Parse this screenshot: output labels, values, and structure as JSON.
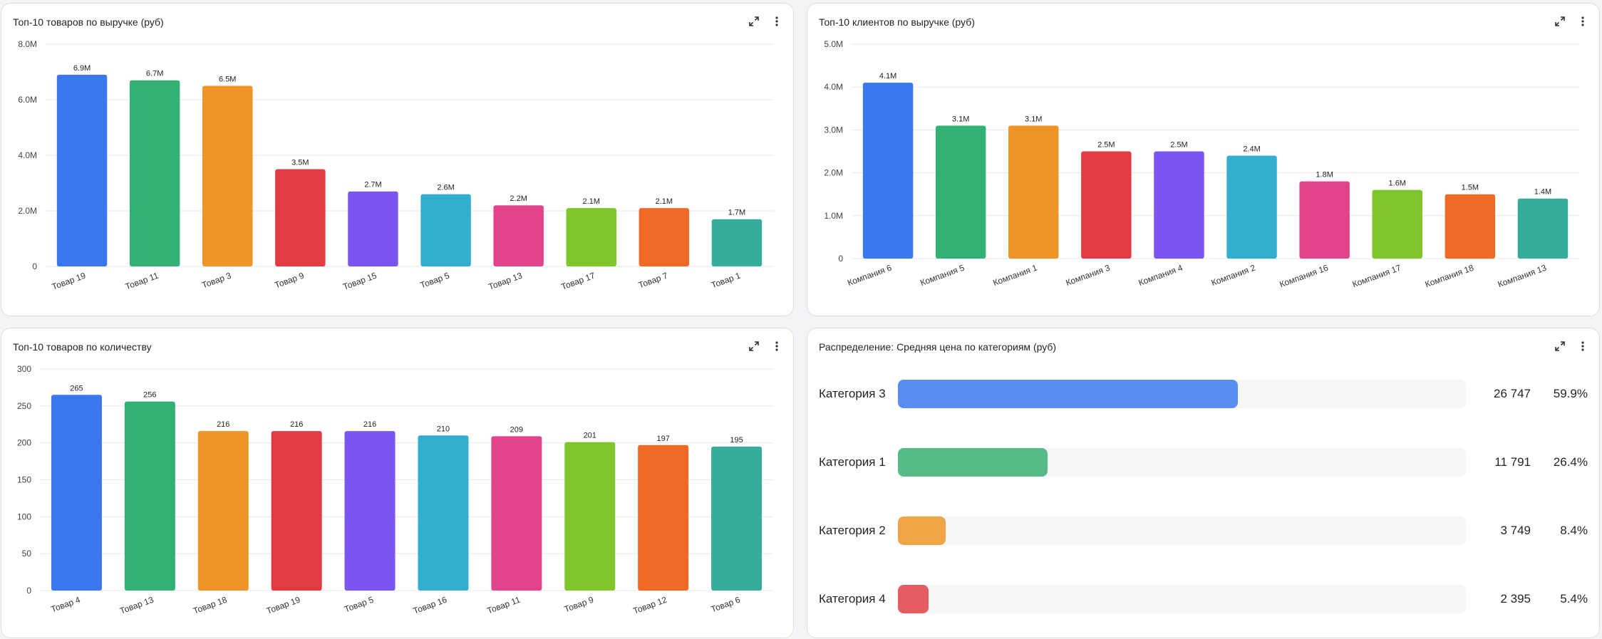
{
  "panels": {
    "revenue_products": {
      "title": "Топ-10 товаров по выручке (руб)"
    },
    "revenue_clients": {
      "title": "Топ-10 клиентов по выручке (руб)"
    },
    "qty_products": {
      "title": "Топ-10 товаров по количеству"
    },
    "distribution": {
      "title": "Распределение: Средняя цена по категориям (руб)"
    }
  },
  "icons": {
    "expand": "expand-icon",
    "menu": "more-vertical-icon"
  },
  "colors": [
    "#3b78ed",
    "#33b074",
    "#ef9426",
    "#e33b43",
    "#7b55ef",
    "#33aece",
    "#e2448c",
    "#7fc52b",
    "#ef6a27",
    "#35ad9a"
  ],
  "chart_data": [
    {
      "type": "bar",
      "title": "Топ-10 товаров по выручке (руб)",
      "categories": [
        "Товар 19",
        "Товар 11",
        "Товар 3",
        "Товар 9",
        "Товар 15",
        "Товар 5",
        "Товар 13",
        "Товар 17",
        "Товар 7",
        "Товар 1"
      ],
      "values": [
        6900000,
        6700000,
        6500000,
        3500000,
        2700000,
        2600000,
        2200000,
        2100000,
        2100000,
        1700000
      ],
      "data_labels": [
        "6.9M",
        "6.7M",
        "6.5M",
        "3.5M",
        "2.7M",
        "2.6M",
        "2.2M",
        "2.1M",
        "2.1M",
        "1.7M"
      ],
      "ylim": [
        0,
        8000000
      ],
      "yticks": [
        0,
        2000000,
        4000000,
        6000000,
        8000000
      ],
      "ytick_labels": [
        "0",
        "2.0M",
        "4.0M",
        "6.0M",
        "8.0M"
      ],
      "grid": true
    },
    {
      "type": "bar",
      "title": "Топ-10 клиентов по выручке (руб)",
      "categories": [
        "Компания 6",
        "Компания 5",
        "Компания 1",
        "Компания 3",
        "Компания 4",
        "Компания 2",
        "Компания 16",
        "Компания 17",
        "Компания 18",
        "Компания 13"
      ],
      "values": [
        4100000,
        3100000,
        3100000,
        2500000,
        2500000,
        2400000,
        1800000,
        1600000,
        1500000,
        1400000
      ],
      "data_labels": [
        "4.1M",
        "3.1M",
        "3.1M",
        "2.5M",
        "2.5M",
        "2.4M",
        "1.8M",
        "1.6M",
        "1.5M",
        "1.4M"
      ],
      "ylim": [
        0,
        5000000
      ],
      "yticks": [
        0,
        1000000,
        2000000,
        3000000,
        4000000,
        5000000
      ],
      "ytick_labels": [
        "0",
        "1.0M",
        "2.0M",
        "3.0M",
        "4.0M",
        "5.0M"
      ],
      "grid": true
    },
    {
      "type": "bar",
      "title": "Топ-10 товаров по количеству",
      "categories": [
        "Товар 4",
        "Товар 13",
        "Товар 18",
        "Товар 19",
        "Товар 5",
        "Товар 16",
        "Товар 11",
        "Товар 9",
        "Товар 12",
        "Товар 6"
      ],
      "values": [
        265,
        256,
        216,
        216,
        216,
        210,
        209,
        201,
        197,
        195
      ],
      "data_labels": [
        "265",
        "256",
        "216",
        "216",
        "216",
        "210",
        "209",
        "201",
        "197",
        "195"
      ],
      "ylim": [
        0,
        300
      ],
      "yticks": [
        0,
        50,
        100,
        150,
        200,
        250,
        300
      ],
      "ytick_labels": [
        "0",
        "50",
        "100",
        "150",
        "200",
        "250",
        "300"
      ],
      "grid": true
    },
    {
      "type": "bar",
      "title": "Распределение: Средняя цена по категориям (руб)",
      "orientation": "horizontal",
      "categories": [
        "Категория 3",
        "Категория 1",
        "Категория 2",
        "Категория 4"
      ],
      "values": [
        26747,
        11791,
        3749,
        2395
      ],
      "value_labels": [
        "26 747",
        "11 791",
        "3 749",
        "2 395"
      ],
      "percent": [
        59.9,
        26.4,
        8.4,
        5.4
      ],
      "percent_labels": [
        "59.9%",
        "26.4%",
        "8.4%",
        "5.4%"
      ],
      "colors": [
        "#5b8cf0",
        "#55bb87",
        "#f0a445",
        "#e55c62"
      ]
    }
  ]
}
